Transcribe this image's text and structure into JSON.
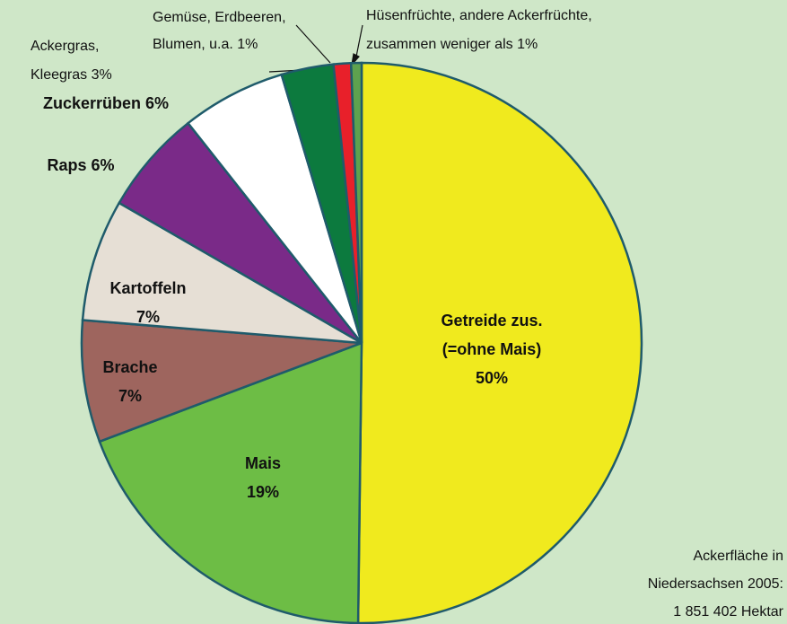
{
  "chart_data": {
    "type": "pie",
    "categories": [
      [
        "Getreide zus.",
        "(=ohne Mais)"
      ],
      [
        "Mais"
      ],
      [
        "Brache"
      ],
      [
        "Kartoffeln"
      ],
      [
        "Raps"
      ],
      [
        "Zuckerrüben"
      ],
      [
        "Ackergras,",
        "Kleegras"
      ],
      [
        "Gemüse, Erdbeeren,",
        "Blumen, u.a."
      ],
      [
        "Hüsenfrüchte, andere Ackerfrüchte,",
        "zusammen weniger als 1%"
      ]
    ],
    "values": [
      50,
      19,
      7,
      7,
      6,
      6,
      3,
      1,
      0.6
    ],
    "value_labels": [
      "50%",
      "19%",
      "7%",
      "7%",
      "6%",
      "6%",
      "3%",
      "1%",
      null
    ],
    "colors": [
      "#f0ea1e",
      "#6dbd45",
      "#9e655e",
      "#e6dfd5",
      "#7a2a88",
      "#ffffff",
      "#0c7a3e",
      "#e8202a",
      "#5ea24e"
    ],
    "annotation": [
      "Ackerfläche in",
      "Niedersachsen 2005:",
      "1 851 402 Hektar"
    ]
  }
}
